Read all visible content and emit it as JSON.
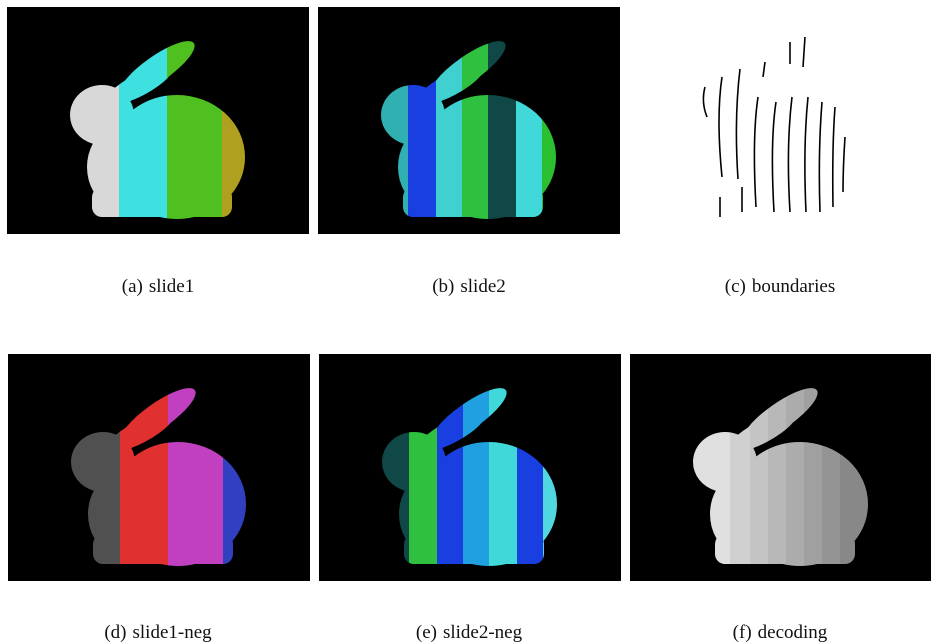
{
  "subfigures": [
    {
      "label": "(a)",
      "caption": "slide1"
    },
    {
      "label": "(b)",
      "caption": "slide2"
    },
    {
      "label": "(c)",
      "caption": "boundaries"
    },
    {
      "label": "(d)",
      "caption": "slide1-neg"
    },
    {
      "label": "(e)",
      "caption": "slide2-neg"
    },
    {
      "label": "(f)",
      "caption": "decoding"
    }
  ]
}
